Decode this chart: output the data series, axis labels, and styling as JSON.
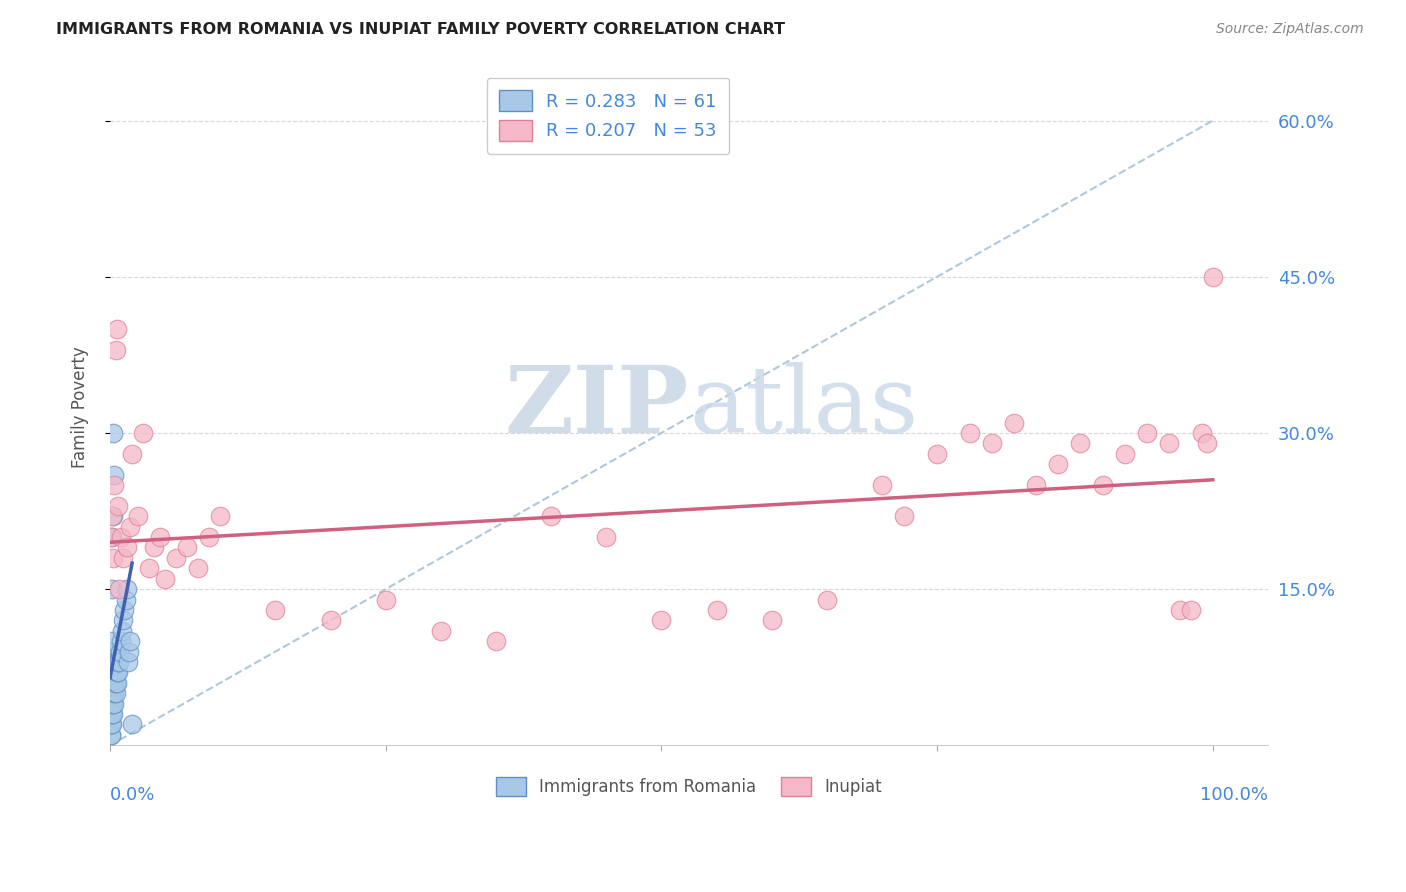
{
  "title": "IMMIGRANTS FROM ROMANIA VS INUPIAT FAMILY POVERTY CORRELATION CHART",
  "source": "Source: ZipAtlas.com",
  "ylabel": "Family Poverty",
  "legend_romania": "Immigrants from Romania",
  "legend_inupiat": "Inupiat",
  "R_romania": 0.283,
  "N_romania": 61,
  "R_inupiat": 0.207,
  "N_inupiat": 53,
  "color_romania_fill": "#a8c8e8",
  "color_inupiat_fill": "#f4b8c8",
  "color_romania_edge": "#6090c0",
  "color_inupiat_edge": "#e08098",
  "color_romania_line": "#4060b0",
  "color_inupiat_line": "#d06080",
  "color_dashed": "#b0c8d8",
  "romania_x": [
    0.001,
    0.001,
    0.001,
    0.001,
    0.001,
    0.001,
    0.001,
    0.001,
    0.001,
    0.001,
    0.001,
    0.001,
    0.001,
    0.001,
    0.001,
    0.001,
    0.002,
    0.002,
    0.002,
    0.002,
    0.002,
    0.002,
    0.002,
    0.002,
    0.002,
    0.002,
    0.002,
    0.003,
    0.003,
    0.003,
    0.003,
    0.003,
    0.003,
    0.003,
    0.003,
    0.004,
    0.004,
    0.004,
    0.004,
    0.004,
    0.005,
    0.005,
    0.005,
    0.005,
    0.006,
    0.006,
    0.006,
    0.007,
    0.007,
    0.008,
    0.009,
    0.01,
    0.011,
    0.012,
    0.013,
    0.014,
    0.015,
    0.016,
    0.017,
    0.018,
    0.02
  ],
  "romania_y": [
    0.01,
    0.02,
    0.03,
    0.04,
    0.05,
    0.06,
    0.07,
    0.08,
    0.01,
    0.02,
    0.03,
    0.04,
    0.05,
    0.06,
    0.07,
    0.08,
    0.02,
    0.03,
    0.04,
    0.05,
    0.06,
    0.07,
    0.08,
    0.09,
    0.1,
    0.15,
    0.2,
    0.03,
    0.04,
    0.05,
    0.06,
    0.07,
    0.08,
    0.22,
    0.3,
    0.04,
    0.05,
    0.06,
    0.07,
    0.26,
    0.05,
    0.06,
    0.07,
    0.08,
    0.06,
    0.07,
    0.08,
    0.07,
    0.08,
    0.08,
    0.09,
    0.1,
    0.11,
    0.12,
    0.13,
    0.14,
    0.15,
    0.08,
    0.09,
    0.1,
    0.02
  ],
  "inupiat_x": [
    0.001,
    0.002,
    0.003,
    0.004,
    0.005,
    0.006,
    0.007,
    0.008,
    0.01,
    0.012,
    0.015,
    0.018,
    0.02,
    0.025,
    0.03,
    0.035,
    0.04,
    0.045,
    0.05,
    0.06,
    0.07,
    0.08,
    0.09,
    0.1,
    0.15,
    0.2,
    0.25,
    0.3,
    0.35,
    0.4,
    0.45,
    0.5,
    0.55,
    0.6,
    0.65,
    0.7,
    0.72,
    0.75,
    0.78,
    0.8,
    0.82,
    0.84,
    0.86,
    0.88,
    0.9,
    0.92,
    0.94,
    0.96,
    0.97,
    0.98,
    0.99,
    0.995,
    1.0
  ],
  "inupiat_y": [
    0.2,
    0.22,
    0.18,
    0.25,
    0.38,
    0.4,
    0.23,
    0.15,
    0.2,
    0.18,
    0.19,
    0.21,
    0.28,
    0.22,
    0.3,
    0.17,
    0.19,
    0.2,
    0.16,
    0.18,
    0.19,
    0.17,
    0.2,
    0.22,
    0.13,
    0.12,
    0.14,
    0.11,
    0.1,
    0.22,
    0.2,
    0.12,
    0.13,
    0.12,
    0.14,
    0.25,
    0.22,
    0.28,
    0.3,
    0.29,
    0.31,
    0.25,
    0.27,
    0.29,
    0.25,
    0.28,
    0.3,
    0.29,
    0.13,
    0.13,
    0.3,
    0.29,
    0.45
  ],
  "romania_line_x": [
    0.0,
    0.02
  ],
  "romania_line_y": [
    0.065,
    0.175
  ],
  "inupiat_line_x": [
    0.0,
    1.0
  ],
  "inupiat_line_y": [
    0.195,
    0.255
  ],
  "diag_line_x": [
    0.0,
    1.0
  ],
  "diag_line_y": [
    0.0,
    0.6
  ],
  "ylim": [
    0.0,
    0.65
  ],
  "xlim": [
    0.0,
    1.05
  ],
  "yticks": [
    0.15,
    0.3,
    0.45,
    0.6
  ],
  "ytick_labels": [
    "15.0%",
    "30.0%",
    "45.0%",
    "60.0%"
  ],
  "xticks": [
    0.0,
    0.25,
    0.5,
    0.75,
    1.0
  ],
  "background_color": "#ffffff",
  "grid_color": "#d8d8d8",
  "watermark_text": "ZIPatlas",
  "watermark_color": "#d0dce8"
}
